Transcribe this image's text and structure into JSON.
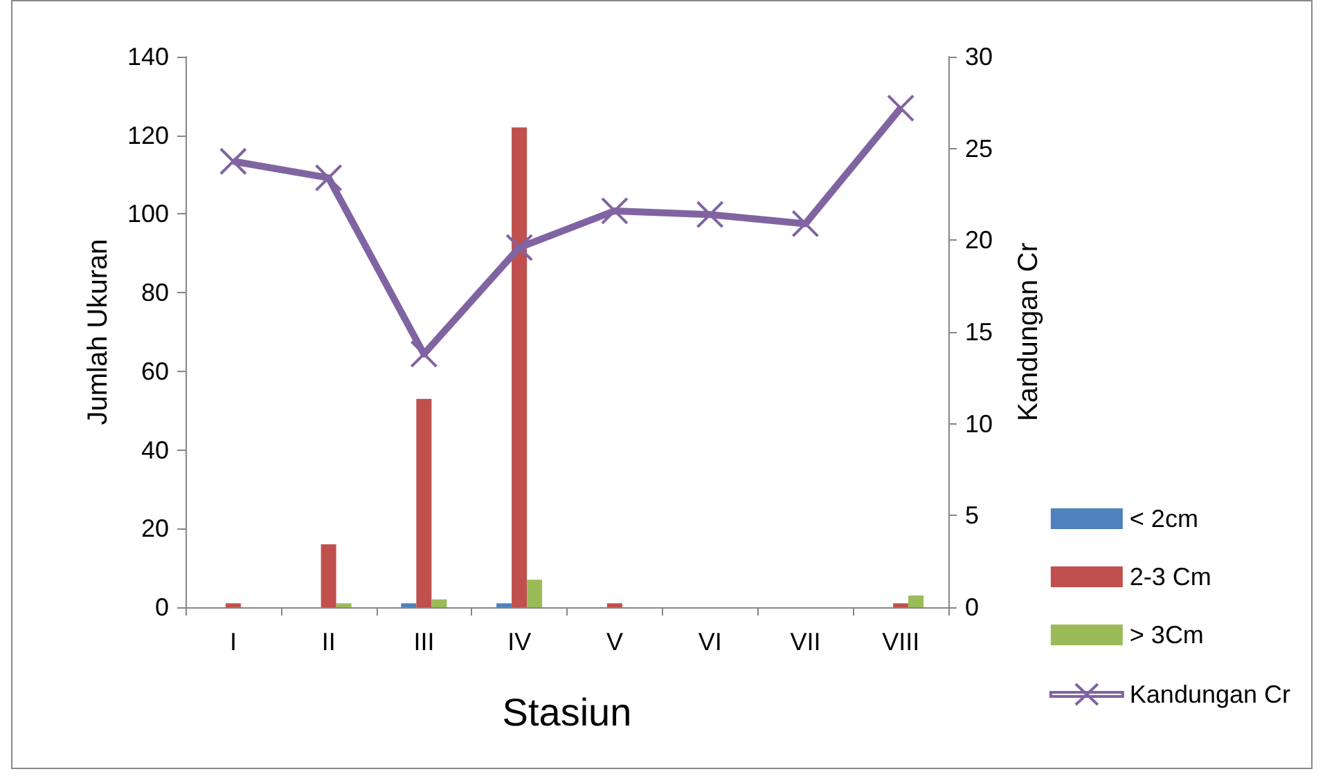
{
  "chart_data": {
    "type": "bar",
    "xlabel": "Stasiun",
    "ylabel": "Jumlah Ukuran",
    "y2label": "Kandungan Cr",
    "categories": [
      "I",
      "II",
      "III",
      "IV",
      "V",
      "VI",
      "VII",
      "VIII"
    ],
    "series": [
      {
        "name": "< 2cm",
        "color": "#4f81bd",
        "values": [
          0,
          0,
          1,
          1,
          0,
          0,
          0,
          0
        ]
      },
      {
        "name": "2-3 Cm",
        "color": "#c0504d",
        "values": [
          1,
          16,
          53,
          122,
          1,
          0,
          0,
          1
        ]
      },
      {
        "name": "> 3Cm",
        "color": "#9bbb59",
        "values": [
          0,
          1,
          2,
          7,
          0,
          0,
          0,
          3
        ]
      },
      {
        "name": "Kandungan Cr",
        "type": "line",
        "axis": "y2",
        "color": "#8064a2",
        "marker": "cross",
        "values": [
          24.3,
          23.4,
          13.8,
          19.6,
          21.6,
          21.4,
          20.9,
          27.2
        ]
      }
    ],
    "ylim": [
      0,
      140
    ],
    "yticks": [
      0,
      20,
      40,
      60,
      80,
      100,
      120,
      140
    ],
    "y2lim": [
      0,
      30
    ],
    "y2ticks": [
      0,
      5,
      10,
      15,
      20,
      25,
      30
    ],
    "grid": false,
    "legend": "right"
  }
}
